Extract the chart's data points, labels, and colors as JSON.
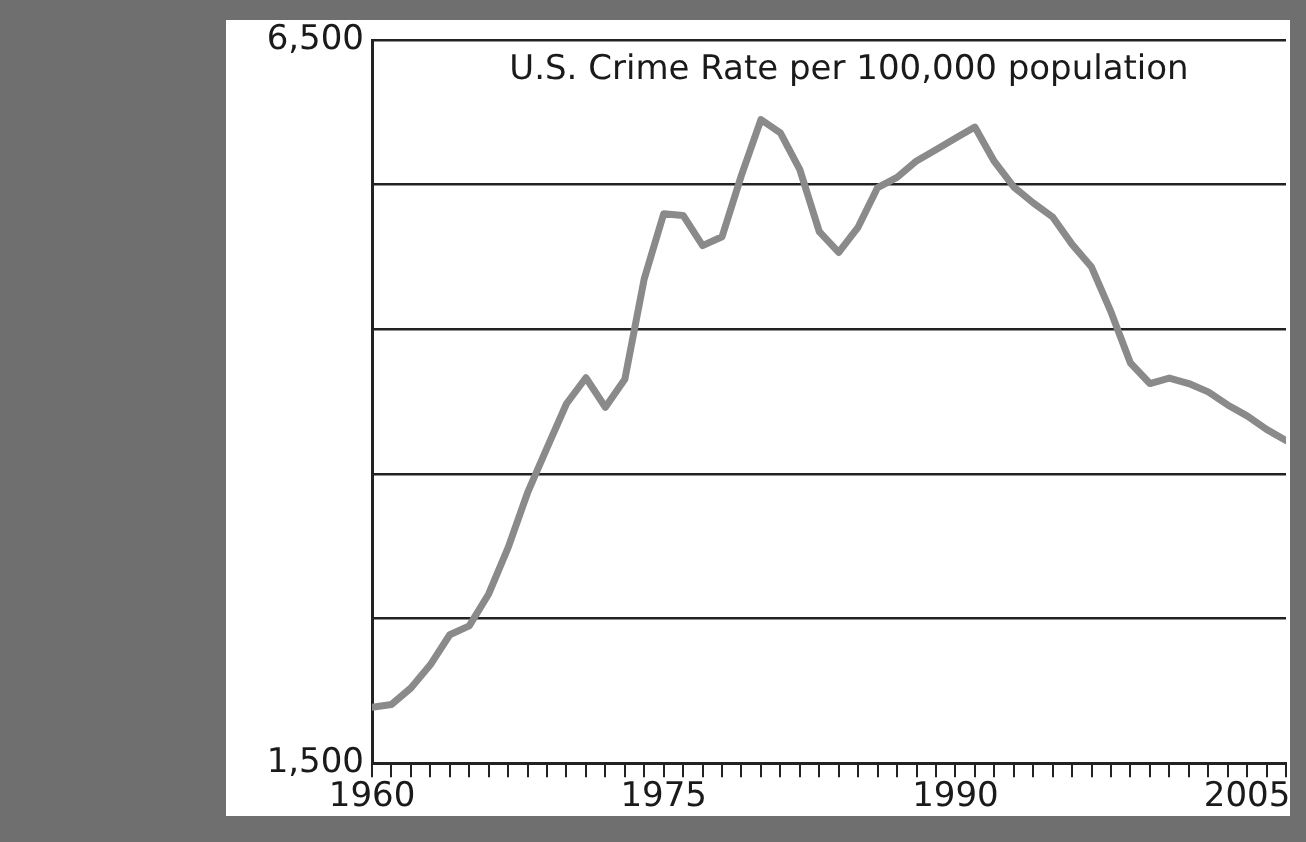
{
  "chart_data": {
    "type": "line",
    "title": "U.S. Crime Rate per 100,000 population",
    "x": [
      1960,
      1961,
      1962,
      1963,
      1964,
      1965,
      1966,
      1967,
      1968,
      1969,
      1970,
      1971,
      1972,
      1973,
      1974,
      1975,
      1976,
      1977,
      1978,
      1979,
      1980,
      1981,
      1982,
      1983,
      1984,
      1985,
      1986,
      1987,
      1988,
      1989,
      1990,
      1991,
      1992,
      1993,
      1994,
      1995,
      1996,
      1997,
      1998,
      1999,
      2000,
      2001,
      2002,
      2003,
      2004,
      2005,
      2006,
      2007
    ],
    "series": [
      {
        "color": "#8a8a8a",
        "values": [
          1887,
          1906,
          2020,
          2180,
          2388,
          2449,
          2670,
          2990,
          3370,
          3680,
          3985,
          4165,
          3961,
          4154,
          4850,
          5299,
          5287,
          5078,
          5140,
          5566,
          5950,
          5858,
          5604,
          5175,
          5031,
          5207,
          5480,
          5550,
          5664,
          5741,
          5820,
          5898,
          5660,
          5484,
          5374,
          5276,
          5087,
          4930,
          4620,
          4267,
          4125,
          4163,
          4125,
          4067,
          3977,
          3901,
          3808,
          3731
        ]
      }
    ],
    "xlim": [
      1960,
      2007
    ],
    "xticks": [
      1960,
      {
        "value": 1961,
        "label": null
      },
      {
        "value": 1962,
        "label": null
      },
      {
        "value": 1963,
        "label": null
      },
      {
        "value": 1964,
        "label": null
      },
      {
        "value": 1965,
        "label": null
      },
      {
        "value": 1966,
        "label": null
      },
      {
        "value": 1967,
        "label": null
      },
      {
        "value": 1968,
        "label": null
      },
      {
        "value": 1969,
        "label": null
      },
      {
        "value": 1970,
        "label": null
      },
      {
        "value": 1971,
        "label": null
      },
      {
        "value": 1972,
        "label": null
      },
      {
        "value": 1973,
        "label": null
      },
      {
        "value": 1974,
        "label": null
      },
      1975,
      {
        "value": 1976,
        "label": null
      },
      {
        "value": 1977,
        "label": null
      },
      {
        "value": 1978,
        "label": null
      },
      {
        "value": 1979,
        "label": null
      },
      {
        "value": 1980,
        "label": null
      },
      {
        "value": 1981,
        "label": null
      },
      {
        "value": 1982,
        "label": null
      },
      {
        "value": 1983,
        "label": null
      },
      {
        "value": 1984,
        "label": null
      },
      {
        "value": 1985,
        "label": null
      },
      {
        "value": 1986,
        "label": null
      },
      {
        "value": 1987,
        "label": null
      },
      {
        "value": 1988,
        "label": null
      },
      {
        "value": 1989,
        "label": null
      },
      1990,
      {
        "value": 1991,
        "label": null
      },
      {
        "value": 1992,
        "label": null
      },
      {
        "value": 1993,
        "label": null
      },
      {
        "value": 1994,
        "label": null
      },
      {
        "value": 1995,
        "label": null
      },
      {
        "value": 1996,
        "label": null
      },
      {
        "value": 1997,
        "label": null
      },
      {
        "value": 1998,
        "label": null
      },
      {
        "value": 1999,
        "label": null
      },
      {
        "value": 2000,
        "label": null
      },
      {
        "value": 2001,
        "label": null
      },
      {
        "value": 2002,
        "label": null
      },
      {
        "value": 2003,
        "label": null
      },
      {
        "value": 2004,
        "label": null
      },
      2005,
      {
        "value": 2006,
        "label": null
      },
      {
        "value": 2007,
        "label": null
      }
    ],
    "ylim": [
      1500,
      6500
    ],
    "yticks": [
      {
        "value": 1500,
        "label": "1,500"
      },
      {
        "value": 2500,
        "label": null
      },
      {
        "value": 3500,
        "label": null
      },
      {
        "value": 4500,
        "label": null
      },
      {
        "value": 5500,
        "label": null
      },
      {
        "value": 6500,
        "label": "6,500"
      }
    ],
    "grid": "y",
    "marker": "none",
    "line_style": "solid"
  }
}
